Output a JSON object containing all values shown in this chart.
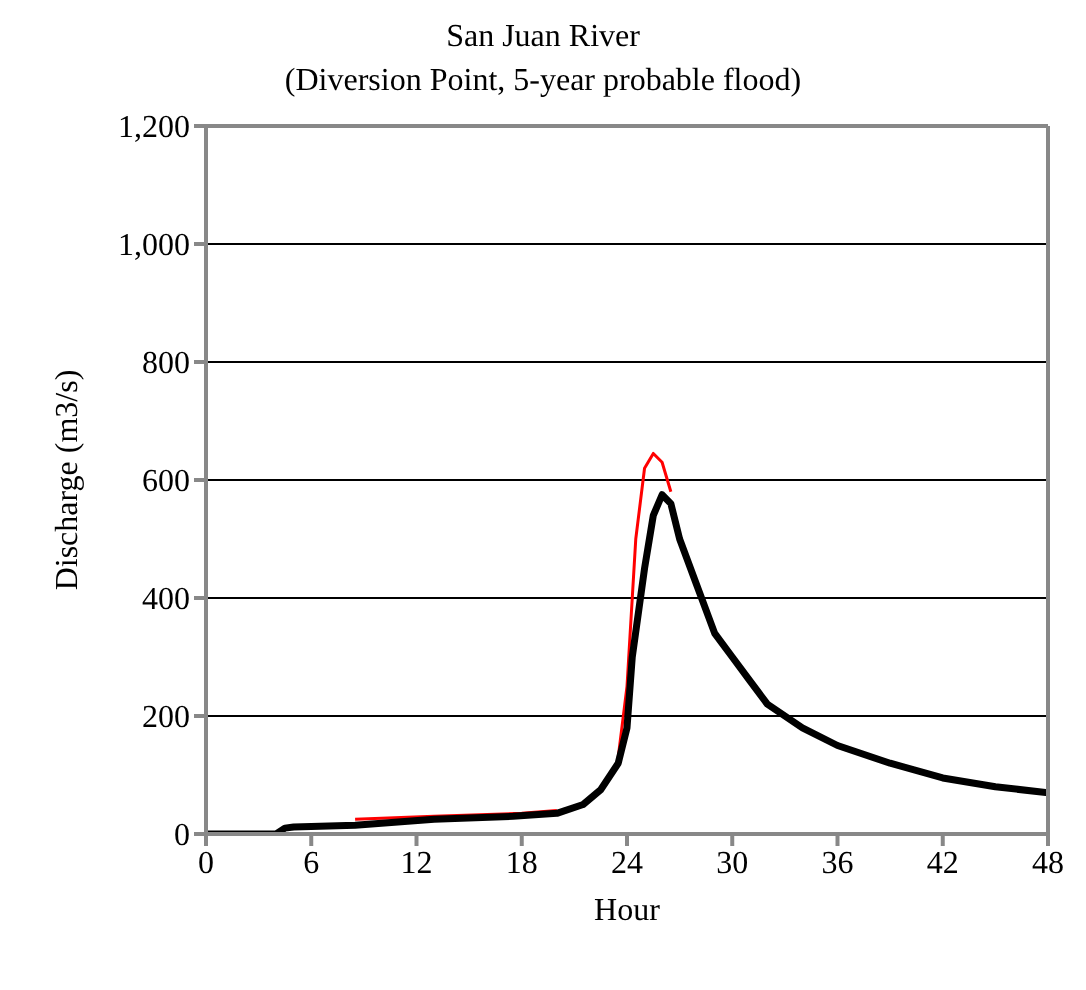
{
  "chart_data": {
    "type": "line",
    "title": "San Juan River",
    "subtitle": "(Diversion Point, 5-year probable flood)",
    "xlabel": "Hour",
    "ylabel": "Discharge (m3/s)",
    "xlim": [
      0,
      48
    ],
    "xticks": [
      0,
      6,
      12,
      18,
      24,
      30,
      36,
      42,
      48
    ],
    "ylim": [
      0,
      1200
    ],
    "yticks": [
      {
        "value": 0,
        "label": "0"
      },
      {
        "value": 200,
        "label": "200"
      },
      {
        "value": 400,
        "label": "400"
      },
      {
        "value": 600,
        "label": "600"
      },
      {
        "value": 800,
        "label": "800"
      },
      {
        "value": 1000,
        "label": "1,000"
      },
      {
        "value": 1200,
        "label": "1,200"
      }
    ],
    "grid": "y",
    "marker": "none",
    "series": [
      {
        "color": "#ff0000",
        "x": [
          8.5,
          13,
          18,
          20,
          22,
          23.5,
          24,
          24.5,
          25,
          25.5,
          26,
          26.5
        ],
        "values": [
          25,
          30,
          35,
          40,
          null,
          130,
          250,
          500,
          620,
          645,
          630,
          580
        ]
      },
      {
        "color": "#000000",
        "x": [
          0,
          4,
          4.5,
          5,
          8.5,
          13,
          17.5,
          20,
          21.5,
          22.5,
          23.5,
          24,
          24.3,
          25,
          25.5,
          26,
          26.5,
          27,
          28,
          29,
          30,
          31,
          32,
          34,
          36,
          39,
          42,
          45,
          48
        ],
        "values": [
          0,
          0,
          10,
          12,
          15,
          25,
          30,
          35,
          50,
          75,
          120,
          180,
          300,
          450,
          540,
          575,
          560,
          500,
          420,
          340,
          300,
          260,
          220,
          180,
          150,
          120,
          95,
          80,
          70
        ]
      }
    ]
  }
}
